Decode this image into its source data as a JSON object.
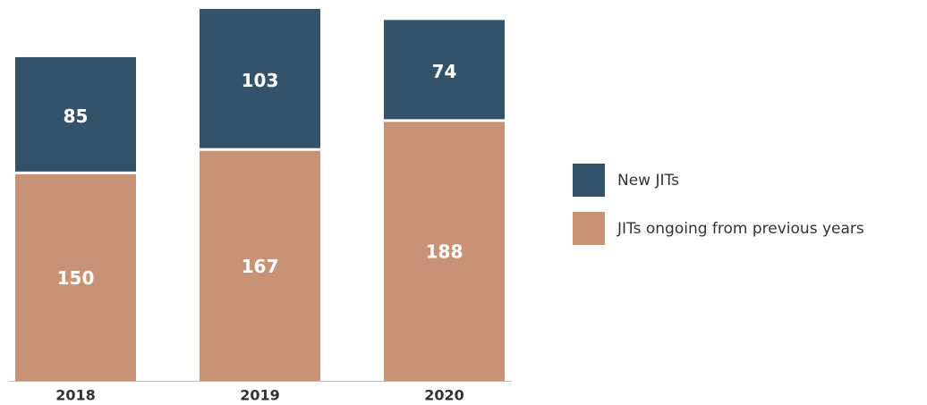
{
  "chart_data": {
    "type": "stacked_bar",
    "categories": [
      "2018",
      "2019",
      "2020"
    ],
    "series": [
      {
        "name": "New JITs",
        "color": "#34536b",
        "values": [
          85,
          103,
          74
        ]
      },
      {
        "name": "JITs ongoing from previous years",
        "color": "#c79276",
        "values": [
          150,
          167,
          188
        ]
      }
    ]
  }
}
